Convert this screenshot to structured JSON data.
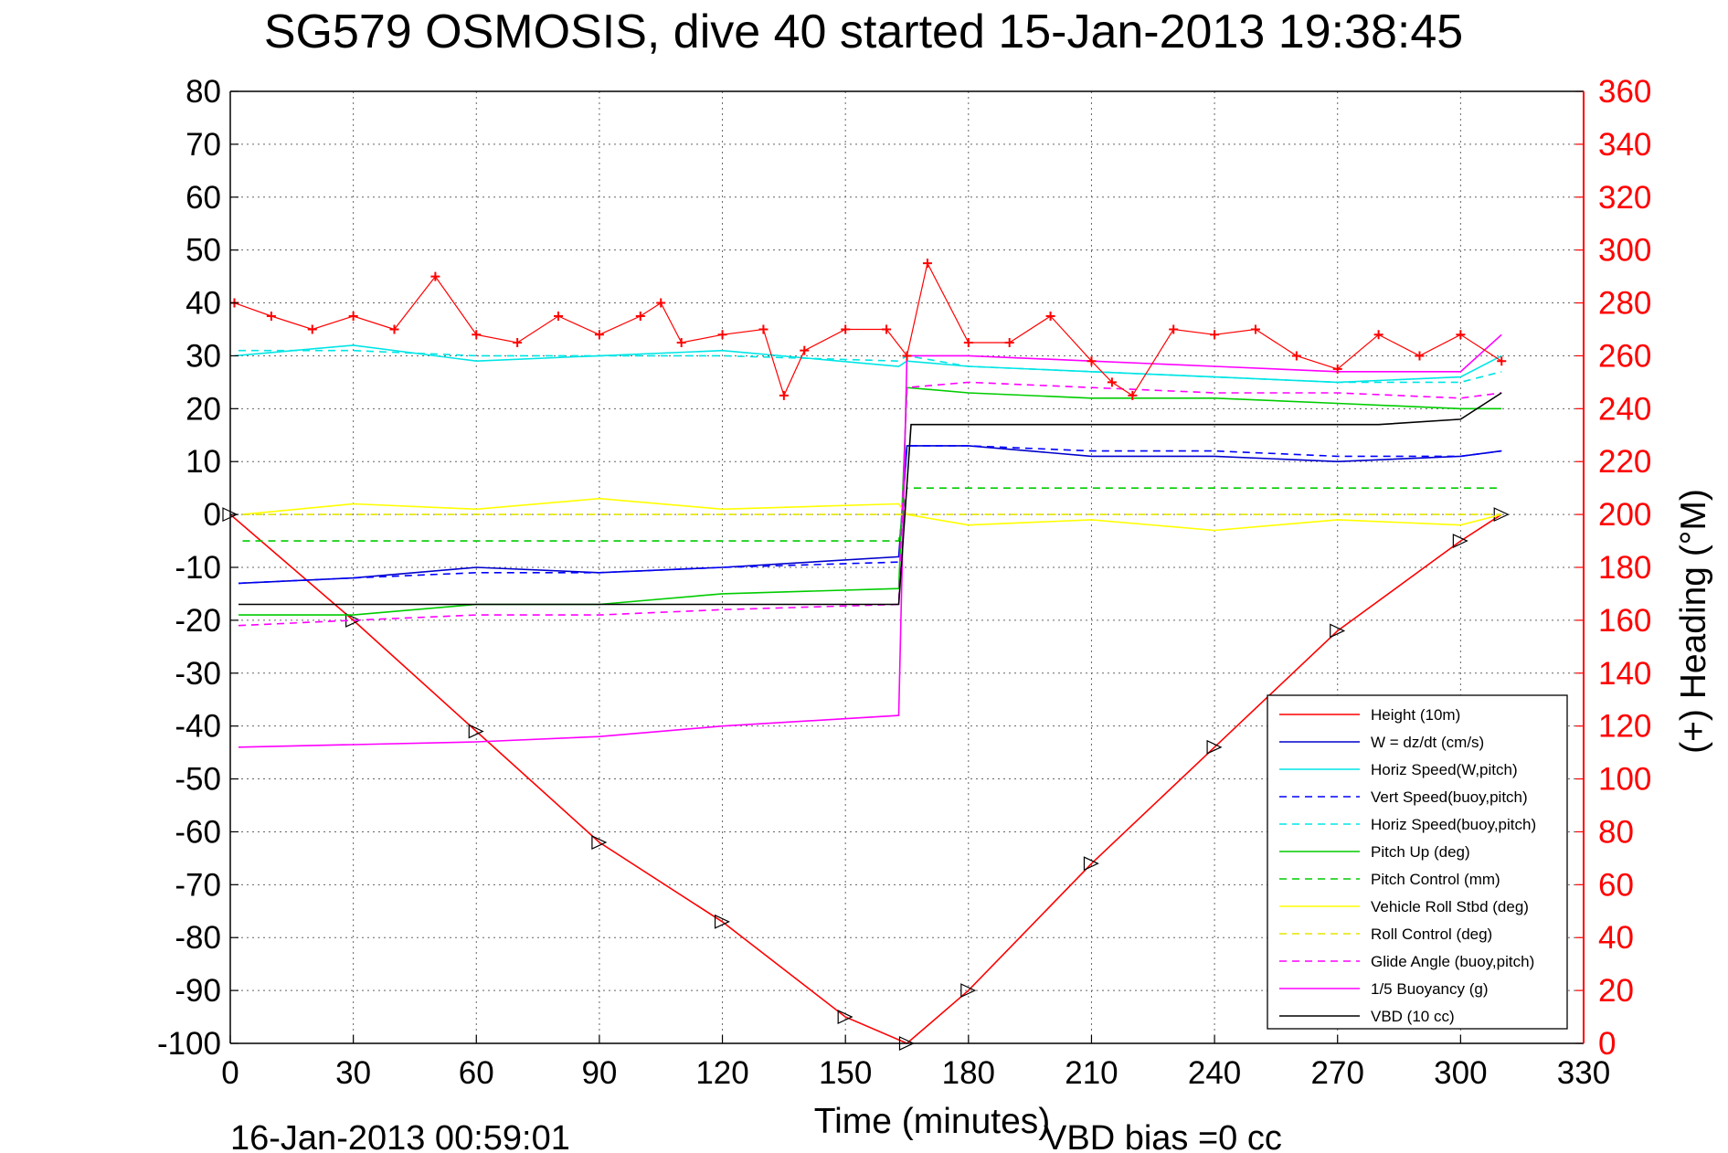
{
  "chart_data": {
    "type": "line",
    "title": "SG579 OSMOSIS, dive 40 started 15-Jan-2013 19:38:45",
    "xlabel": "Time (minutes)",
    "ylabel": "",
    "y2label": "(+) Heading (°M)",
    "xlim": [
      0,
      330
    ],
    "ylim": [
      -100,
      80
    ],
    "y2lim": [
      0,
      360
    ],
    "grid": true,
    "legend_placement": "bottom-right",
    "x_ticks": [
      "0",
      "30",
      "60",
      "90",
      "120",
      "150",
      "180",
      "210",
      "240",
      "270",
      "300",
      "330"
    ],
    "y_ticks": [
      "80",
      "70",
      "60",
      "50",
      "40",
      "30",
      "20",
      "10",
      "0",
      "-10",
      "-20",
      "-30",
      "-40",
      "-50",
      "-60",
      "-70",
      "-80",
      "-90",
      "-100"
    ],
    "y2_ticks": [
      "360",
      "340",
      "320",
      "300",
      "280",
      "260",
      "240",
      "220",
      "200",
      "180",
      "160",
      "140",
      "120",
      "100",
      "80",
      "60",
      "40",
      "20",
      "0"
    ],
    "series": [
      {
        "name": "Height (10m)",
        "color": "#ff0000",
        "dash": "solid",
        "x": [
          0,
          30,
          60,
          90,
          120,
          150,
          165,
          180,
          210,
          240,
          270,
          300,
          310
        ],
        "y": [
          0,
          -20,
          -41,
          -62,
          -77,
          -95,
          -100,
          -90,
          -66,
          -44,
          -22,
          -5,
          0
        ]
      },
      {
        "name": "W = dz/dt (cm/s)",
        "color": "#0000cc",
        "dash": "solid",
        "x": [
          2,
          30,
          60,
          90,
          120,
          163,
          165,
          180,
          210,
          240,
          270,
          300,
          310
        ],
        "y": [
          -13,
          -12,
          -10,
          -11,
          -10,
          -8,
          13,
          13,
          11,
          11,
          10,
          11,
          12
        ]
      },
      {
        "name": "Horiz Speed(W,pitch)",
        "color": "#00e5e5",
        "dash": "solid",
        "x": [
          1,
          30,
          60,
          90,
          120,
          163,
          165,
          180,
          210,
          240,
          270,
          300,
          310
        ],
        "y": [
          30,
          32,
          29,
          30,
          31,
          28,
          29,
          28,
          27,
          26,
          25,
          26,
          30
        ]
      },
      {
        "name": "Vert Speed(buoy,pitch)",
        "color": "#0000ff",
        "dash": "dashed",
        "x": [
          2,
          30,
          60,
          90,
          120,
          163,
          165,
          180,
          210,
          240,
          270,
          300,
          310
        ],
        "y": [
          -13,
          -12,
          -11,
          -11,
          -10,
          -9,
          13,
          13,
          12,
          12,
          11,
          11,
          12
        ]
      },
      {
        "name": "Horiz Speed(buoy,pitch)",
        "color": "#00e5e5",
        "dash": "dashed",
        "x": [
          2,
          30,
          60,
          90,
          120,
          163,
          165,
          180,
          210,
          240,
          270,
          300,
          310
        ],
        "y": [
          31,
          31,
          30,
          30,
          30,
          29,
          30,
          28,
          27,
          26,
          25,
          25,
          27
        ]
      },
      {
        "name": "Pitch Up (deg)",
        "color": "#00cc00",
        "dash": "solid",
        "x": [
          2,
          30,
          60,
          90,
          120,
          163,
          165,
          180,
          210,
          240,
          270,
          300,
          310
        ],
        "y": [
          -19,
          -19,
          -17,
          -17,
          -15,
          -14,
          24,
          23,
          22,
          22,
          21,
          20,
          20
        ]
      },
      {
        "name": "Pitch Control (mm)",
        "color": "#00cc00",
        "dash": "dashed",
        "x": [
          3,
          163,
          165,
          310
        ],
        "y": [
          -5,
          -5,
          5,
          5
        ]
      },
      {
        "name": "Vehicle Roll Stbd (deg)",
        "color": "#ffff00",
        "dash": "solid",
        "x": [
          3,
          30,
          60,
          90,
          120,
          163,
          165,
          180,
          210,
          240,
          270,
          300,
          310
        ],
        "y": [
          0,
          2,
          1,
          3,
          1,
          2,
          0,
          -2,
          -1,
          -3,
          -1,
          -2,
          0
        ]
      },
      {
        "name": "Roll Control (deg)",
        "color": "#e5e500",
        "dash": "dashed",
        "x": [
          3,
          163,
          165,
          310
        ],
        "y": [
          0,
          0,
          0,
          0
        ]
      },
      {
        "name": "Glide Angle (buoy,pitch)",
        "color": "#ff00ff",
        "dash": "dashed",
        "x": [
          2,
          30,
          60,
          90,
          120,
          163,
          165,
          180,
          210,
          240,
          270,
          300,
          310
        ],
        "y": [
          -21,
          -20,
          -19,
          -19,
          -18,
          -17,
          24,
          25,
          24,
          23,
          23,
          22,
          23
        ]
      },
      {
        "name": "1/5 Buoyancy (g)",
        "color": "#ff00ff",
        "dash": "solid",
        "x": [
          2,
          60,
          90,
          120,
          163,
          165,
          180,
          210,
          240,
          270,
          300,
          310
        ],
        "y": [
          -44,
          -43,
          -42,
          -40,
          -38,
          30,
          30,
          29,
          28,
          27,
          27,
          34
        ]
      },
      {
        "name": "VBD (10 cc)",
        "color": "#000000",
        "dash": "solid",
        "x": [
          2,
          163,
          166,
          250,
          280,
          300,
          310
        ],
        "y": [
          -17,
          -17,
          17,
          17,
          17,
          18,
          23
        ]
      }
    ],
    "heading_series": {
      "name": "Heading",
      "color": "#ff0000",
      "marker": "+",
      "x": [
        1,
        10,
        20,
        30,
        40,
        50,
        60,
        70,
        80,
        90,
        100,
        105,
        110,
        120,
        130,
        135,
        140,
        150,
        160,
        165,
        170,
        180,
        190,
        200,
        210,
        215,
        220,
        230,
        240,
        250,
        260,
        270,
        280,
        290,
        300,
        310
      ],
      "y": [
        280,
        275,
        270,
        275,
        270,
        290,
        268,
        265,
        275,
        268,
        275,
        280,
        265,
        268,
        270,
        245,
        262,
        270,
        270,
        260,
        295,
        265,
        265,
        275,
        258,
        250,
        245,
        270,
        268,
        270,
        260,
        255,
        268,
        260,
        268,
        258
      ]
    }
  },
  "timestamp": "16-Jan-2013 00:59:01",
  "vbd_bias": "VBD bias =0 cc"
}
